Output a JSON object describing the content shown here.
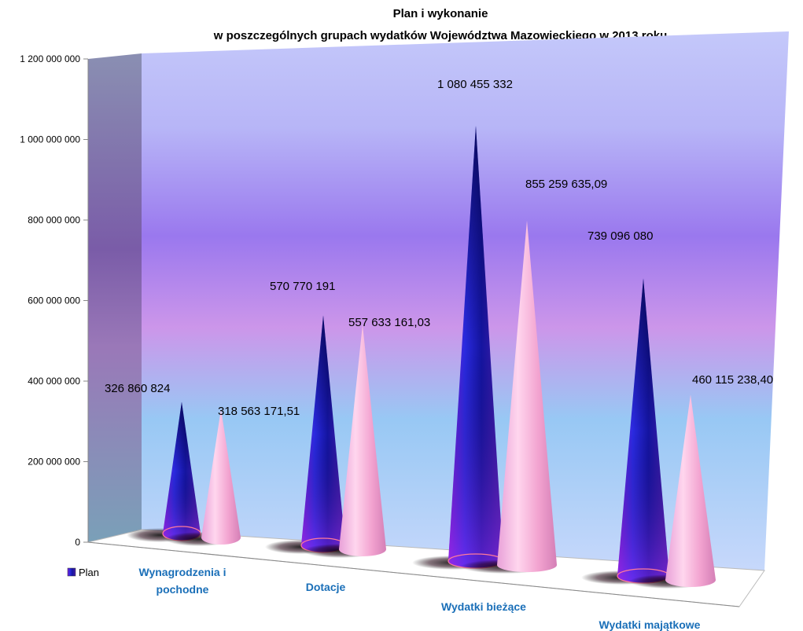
{
  "chart_data": {
    "type": "bar",
    "shape": "cone-3d",
    "title": "Plan i wykonanie",
    "subtitle": "w  poszczególnych grupach wydatków Województwa Mazowieckiego w 2013 roku",
    "categories": [
      "Wynagrodzenia i\npochodne",
      "Dotacje",
      "Wydatki bieżące",
      "Wydatki majątkowe"
    ],
    "series": [
      {
        "name": "Plan",
        "values": [
          326860824,
          570770191,
          1080455332,
          739096080
        ],
        "labels": [
          "326 860 824",
          "570 770 191",
          "1 080 455 332",
          "739 096 080"
        ]
      },
      {
        "values": [
          318563171.51,
          557633161.03,
          855259635.09,
          460115238.4
        ],
        "labels": [
          "318 563 171,51",
          "557 633 161,03",
          "855 259 635,09",
          "460 115 238,40"
        ]
      }
    ],
    "ylim": [
      0,
      1200000000
    ],
    "yticks": [
      0,
      200000000,
      400000000,
      600000000,
      800000000,
      1000000000,
      1200000000
    ],
    "ytick_labels": [
      "0",
      "200 000 000",
      "400 000 000",
      "600 000 000",
      "800 000 000",
      "1 000 000 000",
      "1 200 000 000"
    ],
    "legend": {
      "position": "bottom-left",
      "entries": [
        "Plan"
      ]
    },
    "grid": false,
    "colors": {
      "plan": "#1c1ca8",
      "wykonanie": "#f4a6cf",
      "category_text": "#1a6fb8"
    }
  }
}
